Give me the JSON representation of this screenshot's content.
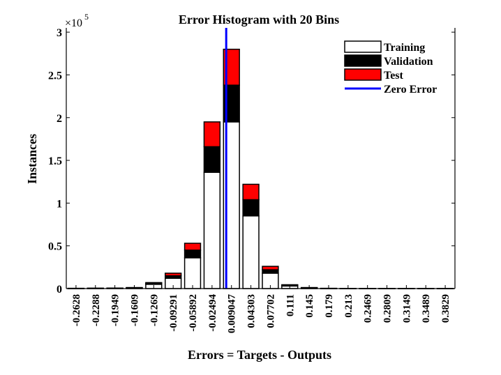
{
  "chart_data": {
    "type": "bar",
    "title": "Error Histogram with 20 Bins",
    "xlabel": "Errors = Targets - Outputs",
    "ylabel": "Instances",
    "exponent_label": "×10",
    "exponent_power": "5",
    "ylim": [
      0,
      3.05
    ],
    "yticks": [
      "0",
      "0.5",
      "1",
      "1.5",
      "2",
      "2.5",
      "3"
    ],
    "categories": [
      "-0.2628",
      "-0.2288",
      "-0.1949",
      "-0.1609",
      "-0.1269",
      "-0.09291",
      "-0.05892",
      "-0.02494",
      "0.009047",
      "0.04303",
      "0.07702",
      "0.111",
      "0.145",
      "0.179",
      "0.213",
      "0.2469",
      "0.2809",
      "0.3149",
      "0.3489",
      "0.3829"
    ],
    "series": [
      {
        "name": "Training",
        "color": "#ffffff",
        "values": [
          0.002,
          0.003,
          0.004,
          0.008,
          0.05,
          0.12,
          0.36,
          1.36,
          1.95,
          0.85,
          0.18,
          0.03,
          0.008,
          0.002,
          0.001,
          0.0005,
          0.0005,
          0.0005,
          0.0005,
          0.0005
        ]
      },
      {
        "name": "Validation",
        "color": "#000000",
        "values": [
          0.0005,
          0.0007,
          0.001,
          0.002,
          0.01,
          0.03,
          0.09,
          0.3,
          0.43,
          0.19,
          0.04,
          0.008,
          0.002,
          0.0005,
          0.0003,
          0.0001,
          0.0001,
          0.0001,
          0.0001,
          0.0001
        ]
      },
      {
        "name": "Test",
        "color": "#ff0000",
        "values": [
          0.0005,
          0.0007,
          0.001,
          0.002,
          0.01,
          0.03,
          0.08,
          0.29,
          0.42,
          0.18,
          0.04,
          0.007,
          0.002,
          0.0005,
          0.0003,
          0.0001,
          0.0001,
          0.0001,
          0.0001,
          0.0001
        ]
      }
    ],
    "zero_error": {
      "name": "Zero Error",
      "color": "#0000ff",
      "x": 0
    },
    "legend_position": "top-right"
  }
}
